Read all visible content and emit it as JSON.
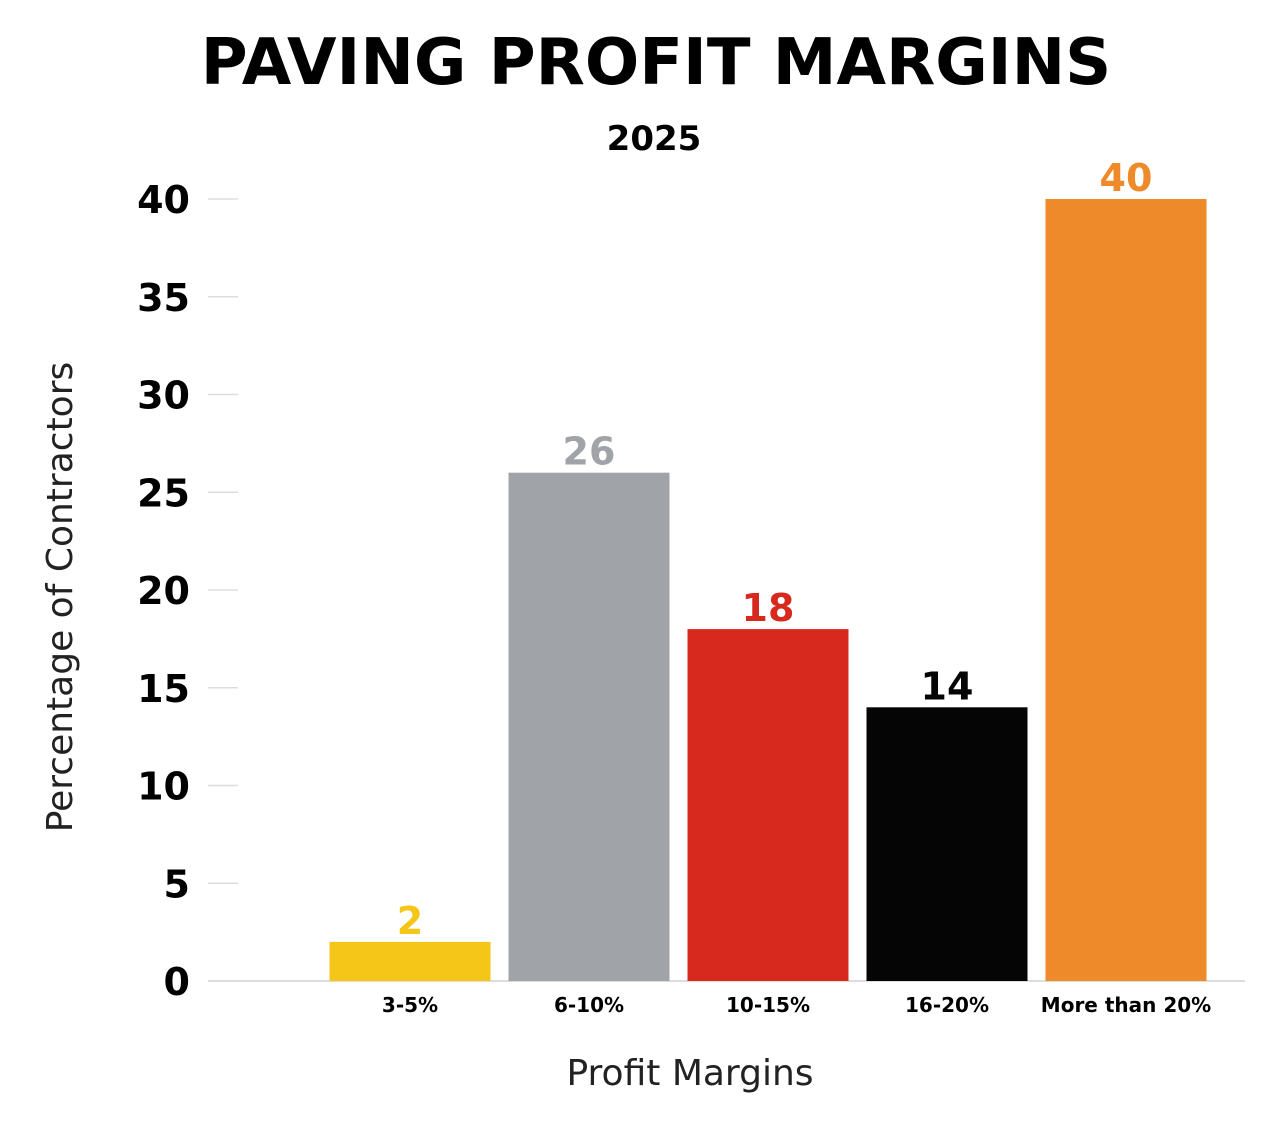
{
  "chart_data": {
    "type": "bar",
    "title": "PAVING PROFIT MARGINS",
    "subtitle": "2025",
    "xlabel": "Profit Margins",
    "ylabel": "Percentage of Contractors",
    "categories": [
      "3-5%",
      "6-10%",
      "10-15%",
      "16-20%",
      "More than 20%"
    ],
    "values": [
      2,
      26,
      18,
      14,
      40
    ],
    "data_labels": [
      "2",
      "26",
      "18",
      "14",
      "40"
    ],
    "colors": [
      "#f5c518",
      "#a0a3a8",
      "#d8291f",
      "#050505",
      "#ee8a2a"
    ],
    "label_colors": [
      "#f5c518",
      "#a0a3a8",
      "#d8291f",
      "#050505",
      "#ee8a2a"
    ],
    "yticks": [
      0,
      5,
      10,
      15,
      20,
      25,
      30,
      35,
      40
    ],
    "ylim": [
      0,
      40
    ],
    "grid": true,
    "legend": "none"
  }
}
